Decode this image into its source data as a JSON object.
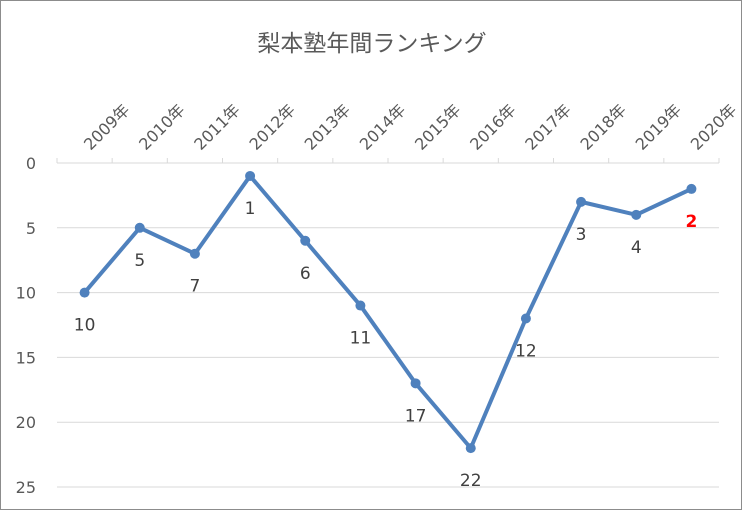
{
  "chart_data": {
    "type": "line",
    "title": "梨本塾年間ランキング",
    "xlabel": "",
    "ylabel": "",
    "categories": [
      "2009年",
      "2010年",
      "2011年",
      "2012年",
      "2013年",
      "2014年",
      "2015年",
      "2016年",
      "2017年",
      "2018年",
      "2019年",
      "2020年"
    ],
    "series": [
      {
        "values": [
          10,
          5,
          7,
          1,
          6,
          11,
          17,
          22,
          12,
          3,
          4,
          2
        ]
      }
    ],
    "data_labels": [
      "10",
      "5",
      "7",
      "1",
      "6",
      "11",
      "17",
      "22",
      "12",
      "3",
      "4",
      "2"
    ],
    "highlight_label_index": 11,
    "ylim": [
      0,
      25
    ],
    "y_ticks": [
      "0",
      "5",
      "10",
      "15",
      "20",
      "25"
    ],
    "y_axis_reversed": true,
    "x_axis_position": "top",
    "grid": true,
    "legend": "none",
    "colors": {
      "line": "#4f81bd",
      "grid": "#d9d9d9",
      "text": "#595959",
      "highlight": "#ff0000"
    }
  }
}
